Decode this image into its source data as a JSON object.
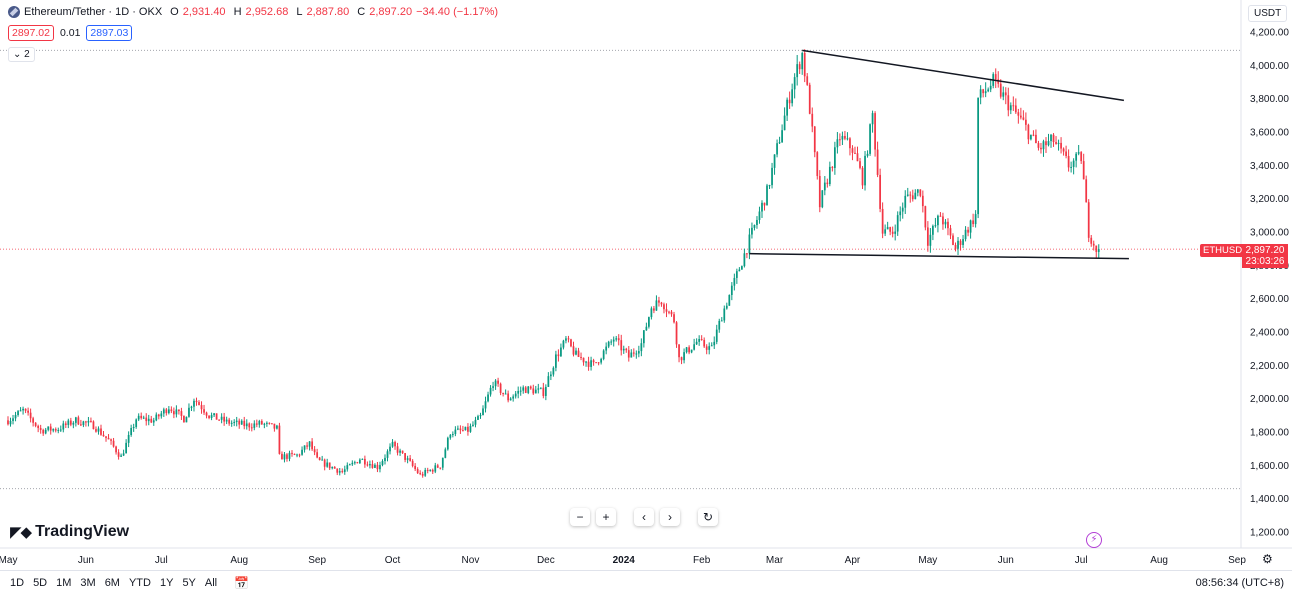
{
  "legend": {
    "symbol": "Ethereum/Tether · 1D · OKX",
    "open_key": "O",
    "open": "2,931.40",
    "high_key": "H",
    "high": "2,952.68",
    "low_key": "L",
    "low": "2,887.80",
    "close_key": "C",
    "close": "2,897.20",
    "change": "−34.40 (−1.17%)"
  },
  "quote": {
    "sell": "2897.02",
    "spread": "0.01",
    "buy": "2897.03"
  },
  "indicators_toggle": "2",
  "currency": "USDT",
  "last_price": {
    "symbol": "ETHUSDT",
    "price": "2,897.20",
    "countdown": "23:03:26"
  },
  "brand": "TradingView",
  "zoom": {
    "minus": "−",
    "plus": "+",
    "left": "‹",
    "right": "›",
    "reset": "↻"
  },
  "time_ranges": [
    "1D",
    "5D",
    "1M",
    "3M",
    "6M",
    "YTD",
    "1Y",
    "5Y",
    "All"
  ],
  "clock": "08:56:34 (UTC+8)",
  "colors": {
    "up": "#089981",
    "down": "#f23645",
    "grid_dot": "#f23645",
    "accent": "#2962ff"
  },
  "chart_data": {
    "type": "candlestick",
    "y_ticks": [
      "4,200.00",
      "4,000.00",
      "3,800.00",
      "3,600.00",
      "3,400.00",
      "3,200.00",
      "3,000.00",
      "2,800.00",
      "2,600.00",
      "2,400.00",
      "2,200.00",
      "2,000.00",
      "1,800.00",
      "1,600.00",
      "1,400.00",
      "1,200.00"
    ],
    "y_tick_values": [
      4200,
      4000,
      3800,
      3600,
      3400,
      3200,
      3000,
      2800,
      2600,
      2400,
      2200,
      2000,
      1800,
      1600,
      1400,
      1200
    ],
    "x_ticks": [
      {
        "label": "May",
        "date": "2023-05-01"
      },
      {
        "label": "Jun",
        "date": "2023-06-01"
      },
      {
        "label": "Jul",
        "date": "2023-07-01"
      },
      {
        "label": "Aug",
        "date": "2023-08-01"
      },
      {
        "label": "Sep",
        "date": "2023-09-01"
      },
      {
        "label": "Oct",
        "date": "2023-10-01"
      },
      {
        "label": "Nov",
        "date": "2023-11-01"
      },
      {
        "label": "Dec",
        "date": "2023-12-01"
      },
      {
        "label": "2024",
        "date": "2024-01-01"
      },
      {
        "label": "Feb",
        "date": "2024-02-01"
      },
      {
        "label": "Mar",
        "date": "2024-03-01"
      },
      {
        "label": "Apr",
        "date": "2024-04-01"
      },
      {
        "label": "May",
        "date": "2024-05-01"
      },
      {
        "label": "Jun",
        "date": "2024-06-01"
      },
      {
        "label": "Jul",
        "date": "2024-07-01"
      },
      {
        "label": "Aug",
        "date": "2024-08-01"
      },
      {
        "label": "Sep",
        "date": "2024-09-01"
      }
    ],
    "x_range": [
      "2023-05-01",
      "2024-09-01"
    ],
    "ylim": [
      1200,
      4200
    ],
    "current_price": 2897.2,
    "horizontal_dotted_levels": [
      4090,
      2897.2,
      1460
    ],
    "trend_lines": [
      {
        "from": {
          "date": "2024-03-12",
          "price": 4090
        },
        "to": {
          "date": "2024-07-18",
          "price": 3790
        }
      },
      {
        "from": {
          "date": "2024-02-20",
          "price": 2870
        },
        "to": {
          "date": "2024-07-20",
          "price": 2840
        }
      }
    ],
    "price_path": [
      [
        "2023-05-01",
        1870
      ],
      [
        "2023-05-07",
        1930
      ],
      [
        "2023-05-14",
        1810
      ],
      [
        "2023-05-21",
        1820
      ],
      [
        "2023-05-28",
        1870
      ],
      [
        "2023-06-04",
        1840
      ],
      [
        "2023-06-10",
        1750
      ],
      [
        "2023-06-15",
        1650
      ],
      [
        "2023-06-21",
        1880
      ],
      [
        "2023-06-28",
        1870
      ],
      [
        "2023-07-04",
        1950
      ],
      [
        "2023-07-10",
        1880
      ],
      [
        "2023-07-14",
        2000
      ],
      [
        "2023-07-20",
        1900
      ],
      [
        "2023-07-27",
        1860
      ],
      [
        "2023-08-04",
        1840
      ],
      [
        "2023-08-10",
        1850
      ],
      [
        "2023-08-16",
        1820
      ],
      [
        "2023-08-17",
        1650
      ],
      [
        "2023-08-24",
        1660
      ],
      [
        "2023-08-29",
        1730
      ],
      [
        "2023-09-01",
        1630
      ],
      [
        "2023-09-11",
        1560
      ],
      [
        "2023-09-18",
        1640
      ],
      [
        "2023-09-25",
        1590
      ],
      [
        "2023-10-01",
        1720
      ],
      [
        "2023-10-07",
        1630
      ],
      [
        "2023-10-12",
        1540
      ],
      [
        "2023-10-20",
        1600
      ],
      [
        "2023-10-24",
        1800
      ],
      [
        "2023-10-31",
        1810
      ],
      [
        "2023-11-05",
        1890
      ],
      [
        "2023-11-10",
        2100
      ],
      [
        "2023-11-16",
        2000
      ],
      [
        "2023-11-22",
        2060
      ],
      [
        "2023-11-30",
        2040
      ],
      [
        "2023-12-05",
        2250
      ],
      [
        "2023-12-09",
        2350
      ],
      [
        "2023-12-13",
        2260
      ],
      [
        "2023-12-20",
        2200
      ],
      [
        "2023-12-28",
        2360
      ],
      [
        "2024-01-03",
        2250
      ],
      [
        "2024-01-08",
        2330
      ],
      [
        "2024-01-12",
        2550
      ],
      [
        "2024-01-16",
        2590
      ],
      [
        "2024-01-21",
        2470
      ],
      [
        "2024-01-23",
        2240
      ],
      [
        "2024-01-30",
        2340
      ],
      [
        "2024-02-05",
        2300
      ],
      [
        "2024-02-09",
        2500
      ],
      [
        "2024-02-14",
        2700
      ],
      [
        "2024-02-20",
        2950
      ],
      [
        "2024-02-27",
        3240
      ],
      [
        "2024-03-04",
        3630
      ],
      [
        "2024-03-08",
        3880
      ],
      [
        "2024-03-12",
        4070
      ],
      [
        "2024-03-15",
        3740
      ],
      [
        "2024-03-19",
        3160
      ],
      [
        "2024-03-22",
        3320
      ],
      [
        "2024-03-27",
        3570
      ],
      [
        "2024-04-01",
        3500
      ],
      [
        "2024-04-05",
        3320
      ],
      [
        "2024-04-09",
        3700
      ],
      [
        "2024-04-13",
        3000
      ],
      [
        "2024-04-17",
        3000
      ],
      [
        "2024-04-22",
        3200
      ],
      [
        "2024-04-28",
        3250
      ],
      [
        "2024-05-01",
        2950
      ],
      [
        "2024-05-06",
        3100
      ],
      [
        "2024-05-12",
        2900
      ],
      [
        "2024-05-20",
        3100
      ],
      [
        "2024-05-21",
        3800
      ],
      [
        "2024-05-27",
        3900
      ],
      [
        "2024-06-03",
        3750
      ],
      [
        "2024-06-08",
        3650
      ],
      [
        "2024-06-14",
        3500
      ],
      [
        "2024-06-20",
        3550
      ],
      [
        "2024-06-26",
        3400
      ],
      [
        "2024-07-01",
        3450
      ],
      [
        "2024-07-04",
        3000
      ],
      [
        "2024-07-07",
        2900
      ],
      [
        "2024-07-08",
        2897.2
      ]
    ]
  }
}
